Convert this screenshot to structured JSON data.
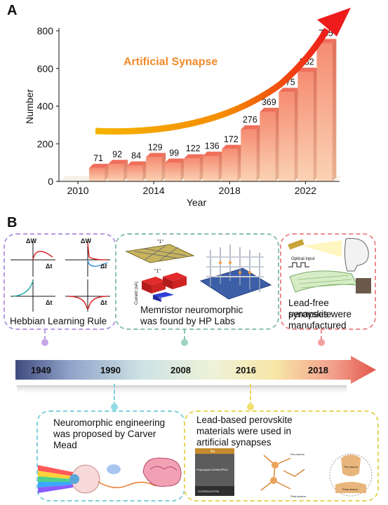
{
  "panel_a": {
    "label": "A"
  },
  "panel_b": {
    "label": "B"
  },
  "chart_data": {
    "type": "bar",
    "title": "",
    "annotation": "Artificial Synapse",
    "xlabel": "Year",
    "ylabel": "Number",
    "x": [
      2011,
      2012,
      2013,
      2014,
      2015,
      2016,
      2017,
      2018,
      2019,
      2020,
      2021,
      2022,
      2023
    ],
    "values": [
      71,
      92,
      84,
      129,
      99,
      122,
      136,
      172,
      276,
      369,
      475,
      582,
      735
    ],
    "xticks": [
      "2010",
      "2014",
      "2018",
      "2022"
    ],
    "yticks": [
      "0",
      "200",
      "400",
      "600",
      "800"
    ],
    "ylim": [
      0,
      800
    ],
    "bar_color": "#f7a58a",
    "trend_colors": [
      "#f5b400",
      "#ee1c1c"
    ]
  },
  "timeline": {
    "years": [
      "1949",
      "1990",
      "2008",
      "2016",
      "2018"
    ],
    "events": {
      "hebbian": "Hebbian Learning Rule",
      "memristor_line1": "Memristor neuromorphic",
      "memristor_line2": "was found by HP Labs",
      "leadfree_line1": "Lead-free perovskite",
      "leadfree_line2": "synapses were",
      "leadfree_line3": "manufactured",
      "neuromorphic_line1": "Neuromorphic engineering",
      "neuromorphic_line2": "was proposed by Carver",
      "neuromorphic_line3": "Mead",
      "leadbased_line1": "Lead-based perovskite",
      "leadbased_line2": "materials were used in",
      "leadbased_line3": "artificial synapses"
    },
    "hebbian_axis_labels": {
      "w": "ΔW",
      "t": "Δt"
    },
    "memristor_labels": {
      "one_a": "\"1\"",
      "one_b": "\"1\"",
      "zero": "\"0\"",
      "current": "Current (nA)"
    },
    "leadfree_labels": {
      "optical": "Optical input"
    },
    "device_labels": {
      "au": "Au",
      "layer": "Polycrystal CH3NH3PbI3",
      "ito": "ITO/PEDOT:PSS"
    },
    "neuron_labels": {
      "pre": "Pre-neuron",
      "post": "Post-neuron"
    }
  }
}
